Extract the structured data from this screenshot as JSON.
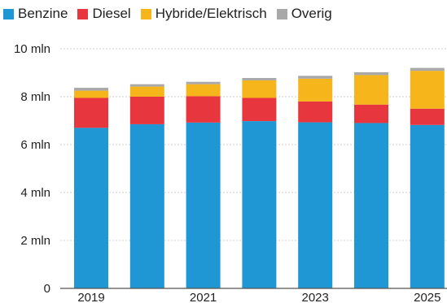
{
  "chart_data": {
    "type": "bar",
    "stacked": true,
    "categories": [
      "2019",
      "2020",
      "2021",
      "2022",
      "2023",
      "2024",
      "2025"
    ],
    "x_tick_labels": [
      "2019",
      "",
      "2021",
      "",
      "2023",
      "",
      "2025"
    ],
    "series": [
      {
        "name": "Benzine",
        "color": "#1f97d4",
        "values": [
          6.7,
          6.85,
          6.92,
          6.98,
          6.93,
          6.9,
          6.82
        ]
      },
      {
        "name": "Diesel",
        "color": "#e8363f",
        "values": [
          1.25,
          1.15,
          1.1,
          0.97,
          0.87,
          0.77,
          0.68
        ]
      },
      {
        "name": "Hybride/Elektrisch",
        "color": "#f7b51c",
        "values": [
          0.3,
          0.42,
          0.5,
          0.73,
          0.95,
          1.23,
          1.58
        ]
      },
      {
        "name": "Overig",
        "color": "#a9a9a9",
        "values": [
          0.12,
          0.1,
          0.1,
          0.1,
          0.12,
          0.12,
          0.12
        ]
      }
    ],
    "y_tick_labels": [
      "0",
      "2 mln",
      "4 mln",
      "6 mln",
      "8 mln",
      "10 mln"
    ],
    "y_tick_values": [
      0,
      2,
      4,
      6,
      8,
      10
    ],
    "ylim": [
      0,
      10
    ],
    "grid": true,
    "legend_position": "top-left",
    "title": "",
    "xlabel": "",
    "ylabel": ""
  }
}
